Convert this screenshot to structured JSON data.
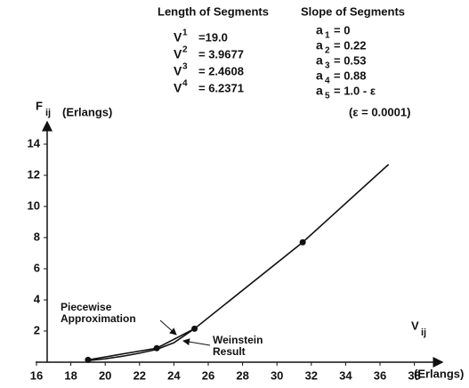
{
  "chart_data": {
    "type": "line",
    "xlabel": {
      "symbol": "V",
      "subscript": "ij",
      "unit": "(Erlangs)"
    },
    "ylabel": {
      "symbol": "F",
      "subscript": "ij",
      "unit": "(Erlangs)"
    },
    "xlim": [
      15.5,
      39.5
    ],
    "ylim": [
      0,
      15.5
    ],
    "xticks": [
      16,
      18,
      20,
      22,
      24,
      26,
      28,
      30,
      32,
      34,
      36,
      38
    ],
    "yticks": [
      2,
      4,
      6,
      8,
      10,
      12,
      14
    ],
    "series": [
      {
        "name": "Piecewise Approximation",
        "color": "#111111",
        "x": [
          19,
          23,
          25.2,
          31.5,
          36.5
        ],
        "values": [
          0.15,
          0.9,
          2.15,
          7.7,
          12.7
        ],
        "markers": [
          true,
          true,
          true,
          true,
          false
        ]
      },
      {
        "name": "Weinstein Result",
        "color": "#111111",
        "x": [
          19,
          20,
          21,
          22,
          23,
          24,
          25.2
        ],
        "values": [
          0.1,
          0.22,
          0.38,
          0.58,
          0.82,
          1.25,
          2.15
        ]
      }
    ],
    "lengths": {
      "title": "Length of Segments",
      "items": [
        {
          "symbol": "V",
          "index": "1",
          "text": "=19.0"
        },
        {
          "symbol": "V",
          "index": "2",
          "text": "= 3.9677"
        },
        {
          "symbol": "V",
          "index": "3",
          "text": "= 2.4608"
        },
        {
          "symbol": "V",
          "index": "4",
          "text": "= 6.2371"
        }
      ]
    },
    "slopes": {
      "title": "Slope of Segments",
      "items": [
        {
          "symbol": "a",
          "index": "1",
          "text": "=  0"
        },
        {
          "symbol": "a",
          "index": "2",
          "text": "=  0.22"
        },
        {
          "symbol": "a",
          "index": "3",
          "text": "=  0.53"
        },
        {
          "symbol": "a",
          "index": "4",
          "text": "=  0.88"
        },
        {
          "symbol": "a",
          "index": "5",
          "text": "=  1.0 - ε"
        }
      ],
      "note": "(ε = 0.0001)"
    }
  }
}
